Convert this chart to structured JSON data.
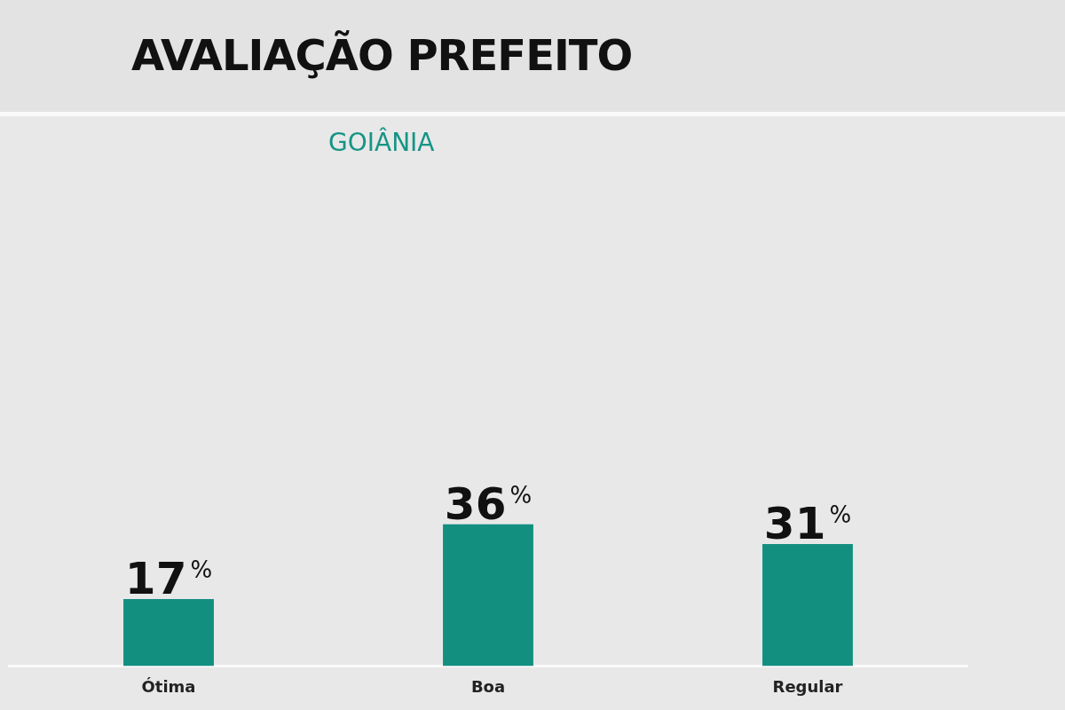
{
  "chart_data": {
    "type": "bar",
    "title": "AVALIAÇÃO PREFEITO",
    "subtitle": "GOIÂNIA",
    "categories": [
      "Ótima",
      "Boa",
      "Regular"
    ],
    "values": [
      17,
      36,
      31
    ],
    "value_labels": [
      "17%",
      "36%",
      "31%"
    ],
    "color": "#138f80",
    "grid": false,
    "legend": false
  }
}
